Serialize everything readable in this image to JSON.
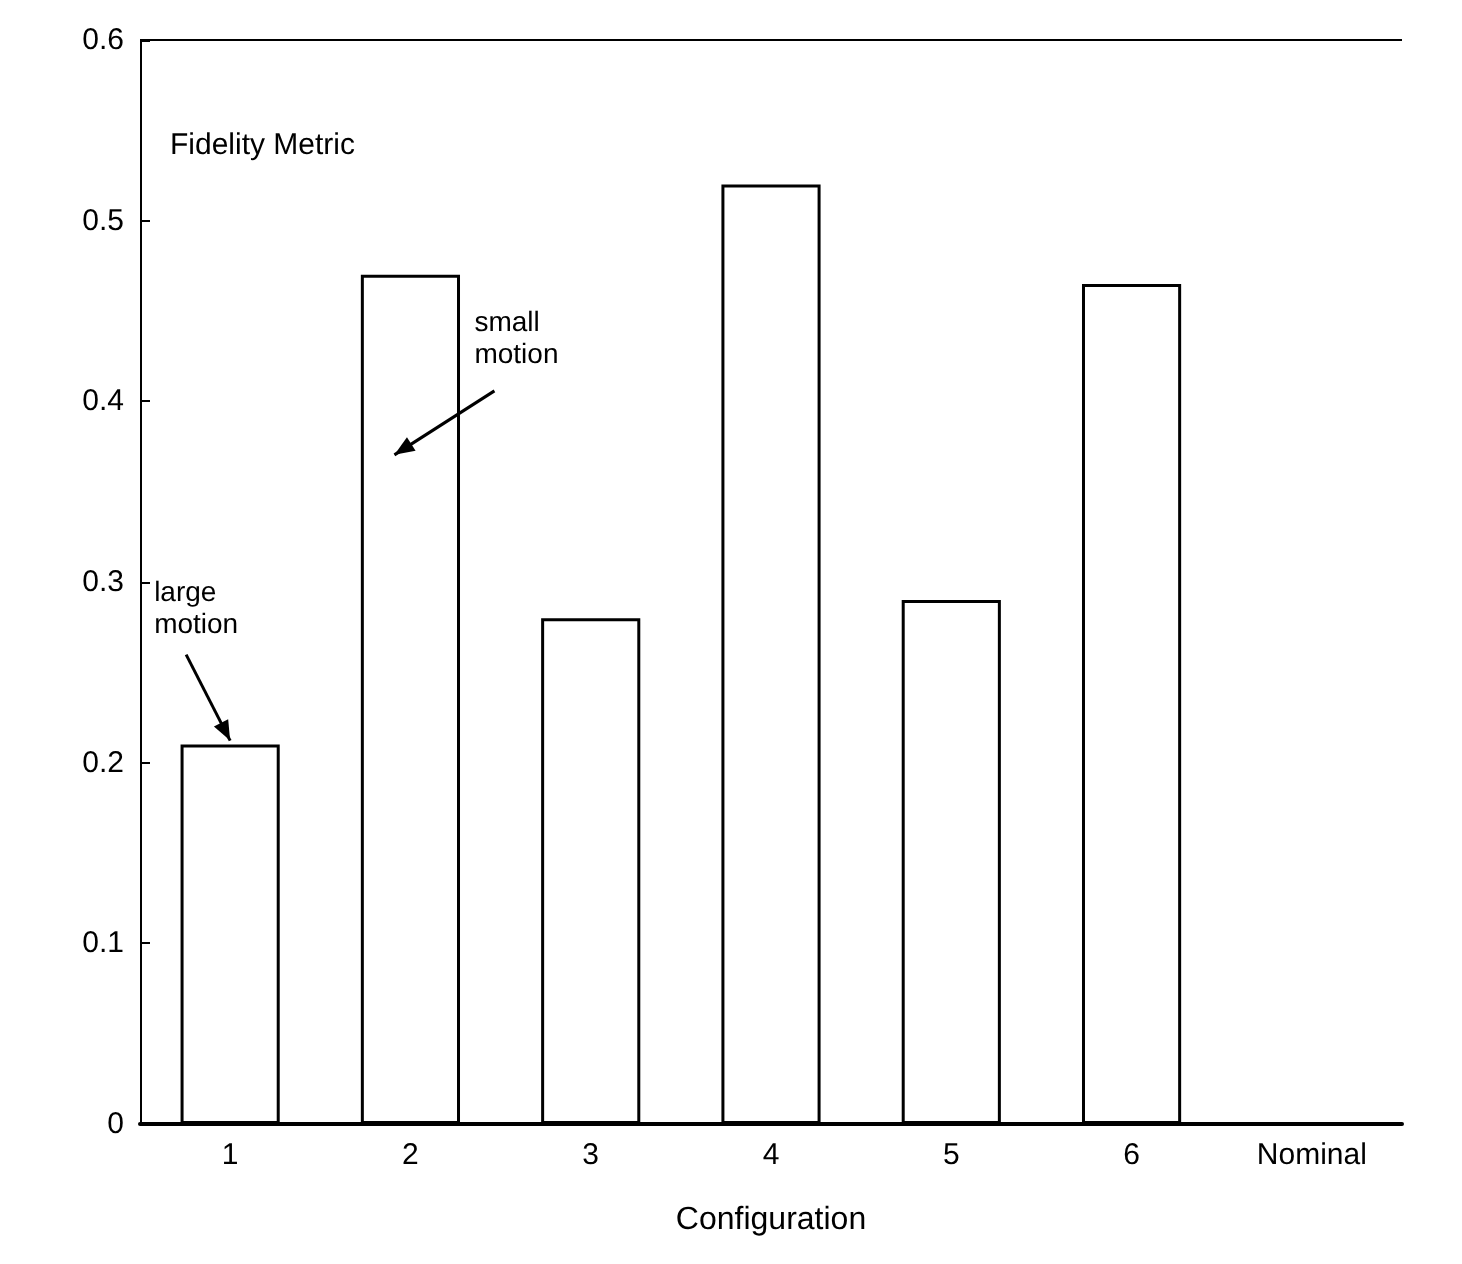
{
  "chart_data": {
    "type": "bar",
    "xlabel": "Configuration",
    "ylabel": "Fidelity Metric",
    "categories": [
      "1",
      "2",
      "3",
      "4",
      "5",
      "6",
      "Nominal"
    ],
    "values": [
      0.21,
      0.47,
      0.28,
      0.52,
      0.29,
      0.465,
      0
    ],
    "colors": [
      "#ffffff",
      "#ffffff",
      "#ffffff",
      "#ffffff",
      "#ffffff",
      "#ffffff",
      "#000000"
    ],
    "ylim": [
      0,
      0.6
    ],
    "yticks": [
      0,
      0.1,
      0.2,
      0.3,
      0.4,
      0.5,
      0.6
    ],
    "grid": false,
    "annotations": [
      {
        "text": "large motion",
        "x": "1",
        "y": 0.21
      },
      "small motion"
    ]
  }
}
